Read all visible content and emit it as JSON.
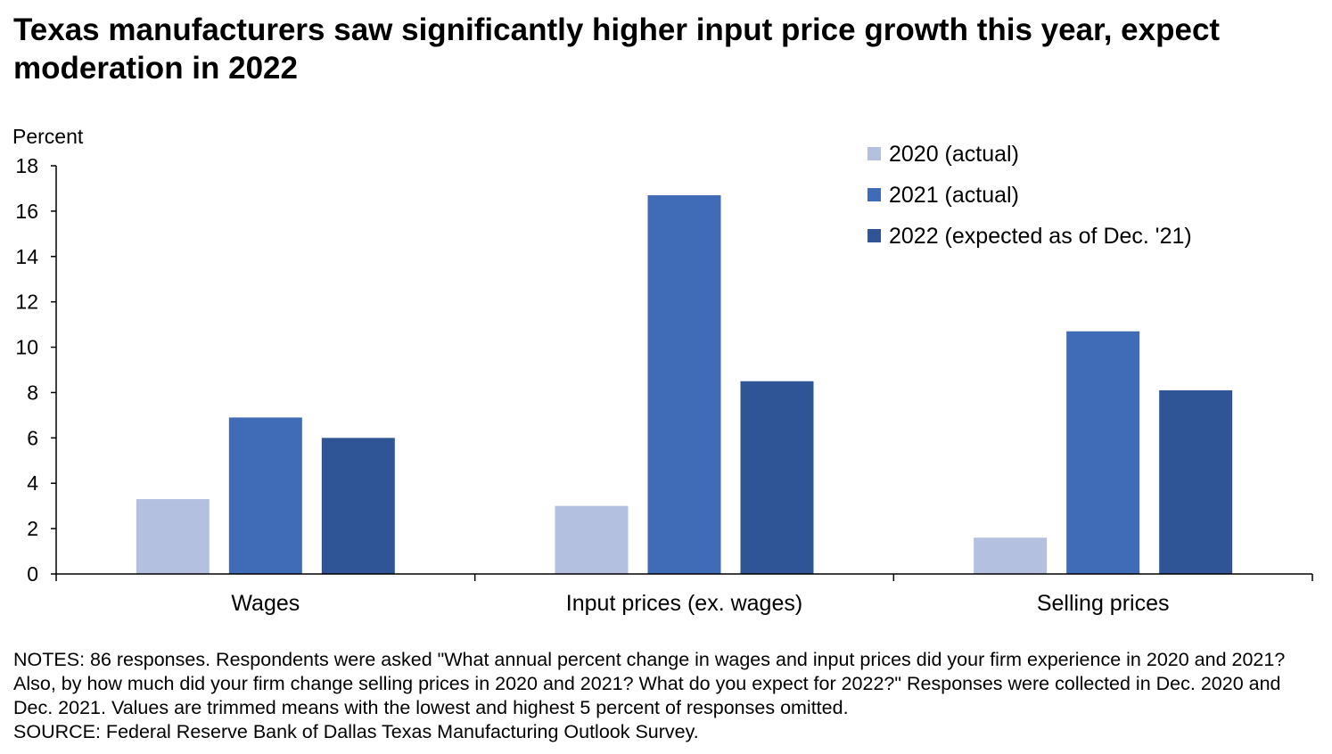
{
  "title": "Texas manufacturers saw significantly higher input price growth this year, expect moderation in 2022",
  "notes": "NOTES: 86 responses. Respondents were asked \"What annual percent change in wages and input prices did your firm experience in 2020 and 2021? Also, by how much did your firm change selling prices in 2020 and 2021? What do you expect for 2022?\" Responses were collected in Dec. 2020 and Dec. 2021. Values are trimmed means with the lowest and highest 5 percent of responses omitted.",
  "source": "SOURCE: Federal Reserve Bank of Dallas Texas Manufacturing Outlook Survey.",
  "chart_data": {
    "type": "bar",
    "title": "Texas manufacturers saw significantly higher input price growth this year, expect moderation in 2022",
    "xlabel": "",
    "ylabel": "Percent",
    "ylim": [
      0,
      18
    ],
    "yticks": [
      0,
      2,
      4,
      6,
      8,
      10,
      12,
      14,
      16,
      18
    ],
    "grid": false,
    "legend_position": "top-right",
    "categories": [
      "Wages",
      "Input prices (ex. wages)",
      "Selling prices"
    ],
    "series": [
      {
        "name": "2020 (actual)",
        "color": "#b4c0df",
        "values": [
          3.3,
          3.0,
          1.6
        ]
      },
      {
        "name": "2021 (actual)",
        "color": "#3f6bb7",
        "values": [
          6.9,
          16.7,
          10.7
        ]
      },
      {
        "name": "2022 (expected as of Dec. '21)",
        "color": "#2f5596",
        "values": [
          6.0,
          8.5,
          8.1
        ]
      }
    ]
  }
}
